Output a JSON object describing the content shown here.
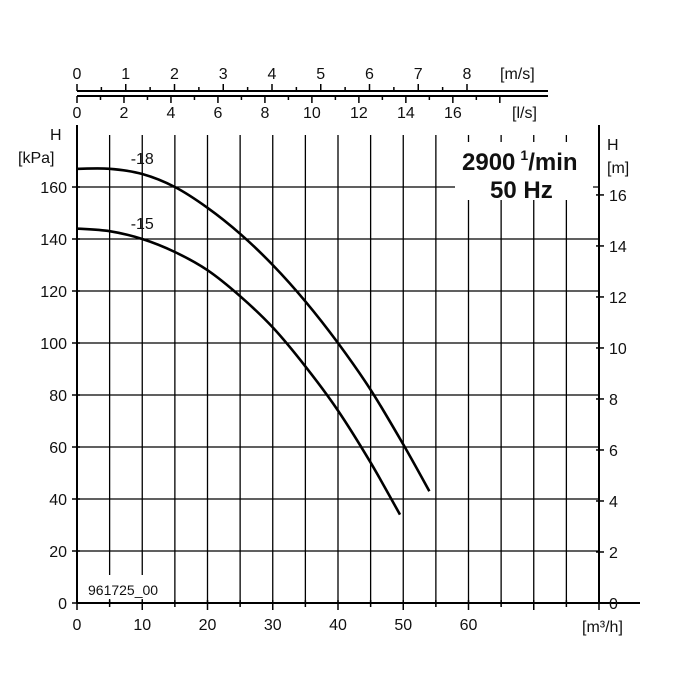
{
  "chart_data": {
    "type": "line",
    "x_axis": {
      "label": "[m³/h]",
      "range": [
        0,
        80
      ],
      "ticks": [
        0,
        10,
        20,
        30,
        40,
        50,
        60
      ],
      "tick_labels": [
        "0",
        "10",
        "20",
        "30",
        "40",
        "50",
        "60"
      ]
    },
    "y_axis_left": {
      "label_top": "H",
      "unit": "[kPa]",
      "range": [
        0,
        180
      ],
      "ticks": [
        0,
        20,
        40,
        60,
        80,
        100,
        120,
        140,
        160
      ],
      "tick_labels": [
        "0",
        "20",
        "40",
        "60",
        "80",
        "100",
        "120",
        "140",
        "160"
      ]
    },
    "y_axis_right": {
      "label_top": "H",
      "unit": "[m]",
      "ticks": [
        0,
        2,
        4,
        6,
        8,
        10,
        12,
        14,
        16
      ],
      "tick_labels": [
        "0",
        "2",
        "4",
        "6",
        "8",
        "10",
        "12",
        "14",
        "16"
      ]
    },
    "top_axis_speed": {
      "unit": "[m/s]",
      "ticks": [
        0,
        1,
        2,
        3,
        4,
        5,
        6,
        7,
        8
      ],
      "tick_labels": [
        "0",
        "1",
        "2",
        "3",
        "4",
        "5",
        "6",
        "7",
        "8"
      ]
    },
    "top_axis_flow": {
      "unit": "[l/s]",
      "ticks": [
        0,
        2,
        4,
        6,
        8,
        10,
        12,
        14,
        16
      ],
      "tick_labels": [
        "0",
        "2",
        "4",
        "6",
        "8",
        "10",
        "12",
        "14",
        "16"
      ]
    },
    "series": [
      {
        "name": "-18",
        "x": [
          0,
          5,
          10,
          15,
          20,
          25,
          30,
          35,
          40,
          45,
          50,
          54
        ],
        "y": [
          167,
          167,
          165,
          160,
          152,
          142,
          130,
          116,
          100,
          82,
          61,
          43
        ]
      },
      {
        "name": "-15",
        "x": [
          0,
          5,
          10,
          15,
          20,
          25,
          30,
          35,
          40,
          45,
          49.5
        ],
        "y": [
          144,
          143,
          140,
          135,
          128,
          118,
          106,
          91,
          74,
          54,
          34
        ]
      }
    ],
    "annotations": {
      "speed_line1": "2900",
      "speed_sup": "1",
      "speed_unit": "/min",
      "frequency": "50 Hz",
      "code": "961725_00"
    },
    "grid": true
  }
}
